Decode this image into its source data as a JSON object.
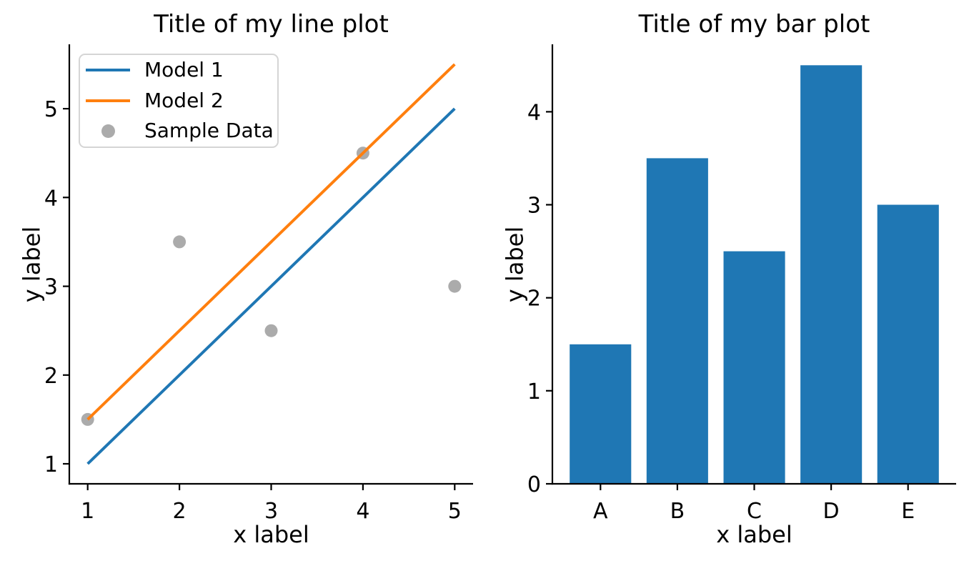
{
  "colors": {
    "blue": "#1f77b4",
    "orange": "#ff7f0e",
    "gray_marker": "#ababab",
    "axis": "#000000"
  },
  "chart_data": [
    {
      "type": "line",
      "title": "Title of my line plot",
      "xlabel": "x label",
      "ylabel": "y label",
      "xlim": [
        0.8,
        5.2
      ],
      "ylim": [
        0.775,
        5.725
      ],
      "xticks": [
        1,
        2,
        3,
        4,
        5
      ],
      "yticks": [
        1,
        2,
        3,
        4,
        5
      ],
      "grid": false,
      "legend_position": "upper left",
      "series": [
        {
          "name": "Model 1",
          "type": "line",
          "color": "#1f77b4",
          "x": [
            1,
            5
          ],
          "y": [
            1,
            5
          ]
        },
        {
          "name": "Model 2",
          "type": "line",
          "color": "#ff7f0e",
          "x": [
            1,
            5
          ],
          "y": [
            1.5,
            5.5
          ]
        },
        {
          "name": "Sample Data",
          "type": "scatter",
          "color": "#ababab",
          "x": [
            1,
            2,
            3,
            4,
            5
          ],
          "y": [
            1.5,
            3.5,
            2.5,
            4.5,
            3.0
          ]
        }
      ],
      "legend": [
        {
          "label": "Model 1",
          "swatch": "line",
          "color": "#1f77b4"
        },
        {
          "label": "Model 2",
          "swatch": "line",
          "color": "#ff7f0e"
        },
        {
          "label": "Sample Data",
          "swatch": "marker",
          "color": "#ababab"
        }
      ]
    },
    {
      "type": "bar",
      "title": "Title of my bar plot",
      "xlabel": "x label",
      "ylabel": "y label",
      "categories": [
        "A",
        "B",
        "C",
        "D",
        "E"
      ],
      "values": [
        1.5,
        3.5,
        2.5,
        4.5,
        3.0
      ],
      "bar_color": "#1f77b4",
      "bar_width": 0.8,
      "xlim": [
        -0.625,
        4.625
      ],
      "ylim": [
        0,
        4.725
      ],
      "yticks": [
        0,
        1,
        2,
        3,
        4
      ],
      "grid": false
    }
  ]
}
